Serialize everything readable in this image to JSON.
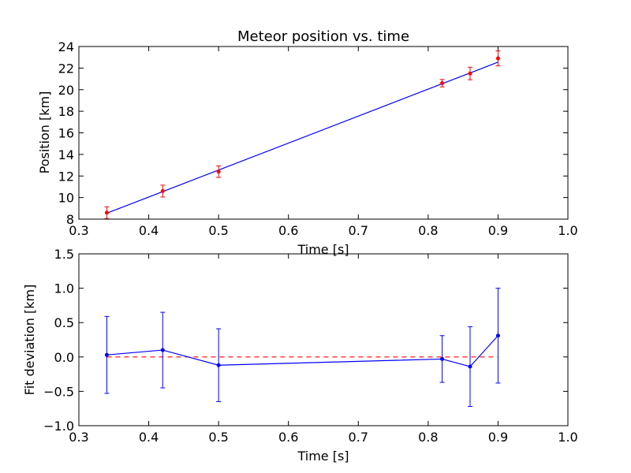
{
  "chart_data": [
    {
      "type": "scatter",
      "title": "Meteor position vs. time",
      "xlabel": "Time [s]",
      "ylabel": "Position [km]",
      "xlim": [
        0.3,
        1.0
      ],
      "ylim": [
        8,
        24
      ],
      "xticks": [
        "0.3",
        "0.4",
        "0.5",
        "0.6",
        "0.7",
        "0.8",
        "0.9",
        "1.0"
      ],
      "yticks": [
        "8",
        "10",
        "12",
        "14",
        "16",
        "18",
        "20",
        "22",
        "24"
      ],
      "grid": false,
      "measurements": {
        "color": "#ff0000",
        "points": [
          {
            "x": 0.34,
            "y": 8.6,
            "err": 0.55
          },
          {
            "x": 0.42,
            "y": 10.6,
            "err": 0.55
          },
          {
            "x": 0.5,
            "y": 12.4,
            "err": 0.53
          },
          {
            "x": 0.82,
            "y": 20.6,
            "err": 0.34
          },
          {
            "x": 0.86,
            "y": 21.5,
            "err": 0.58
          },
          {
            "x": 0.9,
            "y": 22.9,
            "err": 0.69
          }
        ]
      },
      "fit": {
        "color": "#0000ff",
        "x": [
          0.34,
          0.42,
          0.5,
          0.82,
          0.86,
          0.9
        ],
        "y": [
          8.55,
          10.55,
          12.55,
          20.55,
          21.55,
          22.55
        ]
      }
    },
    {
      "type": "scatter",
      "title": "",
      "xlabel": "Time [s]",
      "ylabel": "Fit deviation [km]",
      "xlim": [
        0.3,
        1.0
      ],
      "ylim": [
        -1.0,
        1.5
      ],
      "xticks": [
        "0.3",
        "0.4",
        "0.5",
        "0.6",
        "0.7",
        "0.8",
        "0.9",
        "1.0"
      ],
      "yticks": [
        "−1.0",
        "−0.5",
        "0.0",
        "0.5",
        "1.0",
        "1.5"
      ],
      "grid": false,
      "deviations": {
        "color": "#0000ff",
        "points": [
          {
            "x": 0.34,
            "y": 0.03,
            "err": 0.56
          },
          {
            "x": 0.42,
            "y": 0.1,
            "err": 0.55
          },
          {
            "x": 0.5,
            "y": -0.12,
            "err": 0.53
          },
          {
            "x": 0.82,
            "y": -0.03,
            "err": 0.34
          },
          {
            "x": 0.86,
            "y": -0.14,
            "err": 0.58
          },
          {
            "x": 0.9,
            "y": 0.31,
            "err": 0.69
          }
        ]
      },
      "reference": {
        "y": 0.0,
        "color": "#ff0000",
        "style": "dashed"
      }
    }
  ]
}
